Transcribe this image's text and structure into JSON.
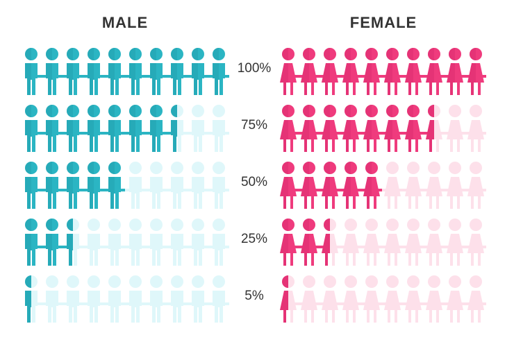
{
  "headings": {
    "male": "MALE",
    "female": "FEMALE"
  },
  "colors": {
    "male": "#2bb5c3",
    "male_dark": "#1e97a5",
    "male_light": "#dff7fa",
    "female": "#ef3b7d",
    "female_dark": "#d4256a",
    "female_light": "#fde0ea"
  },
  "people_per_row": 10,
  "rows": [
    {
      "label": "100%",
      "fill": 1.0
    },
    {
      "label": "75%",
      "fill": 0.75
    },
    {
      "label": "50%",
      "fill": 0.5
    },
    {
      "label": "25%",
      "fill": 0.25
    },
    {
      "label": "5%",
      "fill": 0.05
    }
  ]
}
